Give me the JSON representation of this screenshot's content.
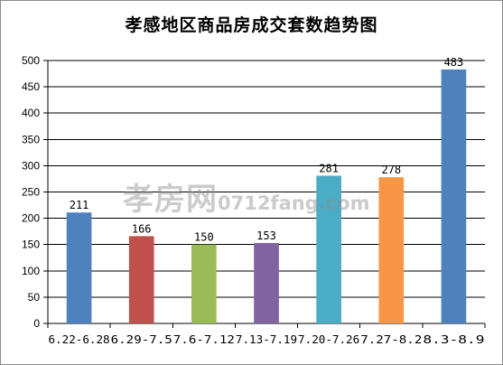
{
  "chart_data": {
    "type": "bar",
    "title": "孝感地区商品房成交套数趋势图",
    "categories": [
      "6.22-6.28",
      "6.29-7.5",
      "7.6-7.12",
      "7.13-7.19",
      "7.20-7.26",
      "7.27-8.2",
      "8.3-8.9"
    ],
    "values": [
      211,
      166,
      150,
      153,
      281,
      278,
      483
    ],
    "colors": [
      "#4f81bd",
      "#c0504d",
      "#9bbb59",
      "#8064a2",
      "#4bacc6",
      "#f79646",
      "#4f81bd"
    ],
    "ylim": [
      0,
      500
    ],
    "yticks": [
      0,
      50,
      100,
      150,
      200,
      250,
      300,
      350,
      400,
      450,
      500
    ],
    "grid": true,
    "legend": "none",
    "xlabel": "",
    "ylabel": ""
  },
  "watermark": {
    "cn": "孝房网",
    "en": "0712fang.com"
  }
}
